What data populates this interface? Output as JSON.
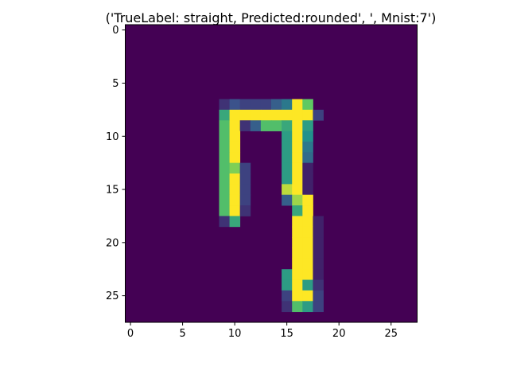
{
  "chart_data": {
    "type": "heatmap",
    "title": "('TrueLabel: straight, Predicted:rounded', ', Mnist:7')",
    "xlabel": "",
    "ylabel": "",
    "rows": 28,
    "cols": 28,
    "xlim": [
      -0.5,
      27.5
    ],
    "ylim": [
      27.5,
      -0.5
    ],
    "xticks": [
      0,
      5,
      10,
      15,
      20,
      25
    ],
    "yticks": [
      0,
      5,
      10,
      15,
      20,
      25
    ],
    "colormap": "viridis",
    "vmin": 0,
    "vmax": 1,
    "grid": false,
    "colors": {
      "background": "#ffffff",
      "axis": "#000000",
      "low": "#440154",
      "high": "#fde725"
    },
    "cells": [
      {
        "r": 7,
        "c": 9,
        "v": 0.15
      },
      {
        "r": 7,
        "c": 10,
        "v": 0.25
      },
      {
        "r": 7,
        "c": 11,
        "v": 0.2
      },
      {
        "r": 7,
        "c": 12,
        "v": 0.2
      },
      {
        "r": 7,
        "c": 13,
        "v": 0.2
      },
      {
        "r": 7,
        "c": 14,
        "v": 0.3
      },
      {
        "r": 7,
        "c": 15,
        "v": 0.4
      },
      {
        "r": 7,
        "c": 16,
        "v": 1.0
      },
      {
        "r": 7,
        "c": 17,
        "v": 0.75
      },
      {
        "r": 8,
        "c": 9,
        "v": 0.6
      },
      {
        "r": 8,
        "c": 10,
        "v": 1.0
      },
      {
        "r": 8,
        "c": 11,
        "v": 1.0
      },
      {
        "r": 8,
        "c": 12,
        "v": 1.0
      },
      {
        "r": 8,
        "c": 13,
        "v": 1.0
      },
      {
        "r": 8,
        "c": 14,
        "v": 1.0
      },
      {
        "r": 8,
        "c": 15,
        "v": 1.0
      },
      {
        "r": 8,
        "c": 16,
        "v": 1.0
      },
      {
        "r": 8,
        "c": 17,
        "v": 1.0
      },
      {
        "r": 8,
        "c": 18,
        "v": 0.2
      },
      {
        "r": 9,
        "c": 9,
        "v": 0.7
      },
      {
        "r": 9,
        "c": 10,
        "v": 1.0
      },
      {
        "r": 9,
        "c": 11,
        "v": 0.15
      },
      {
        "r": 9,
        "c": 12,
        "v": 0.3
      },
      {
        "r": 9,
        "c": 13,
        "v": 0.7
      },
      {
        "r": 9,
        "c": 14,
        "v": 0.7
      },
      {
        "r": 9,
        "c": 15,
        "v": 0.6
      },
      {
        "r": 9,
        "c": 16,
        "v": 1.0
      },
      {
        "r": 9,
        "c": 17,
        "v": 0.55
      },
      {
        "r": 10,
        "c": 9,
        "v": 0.7
      },
      {
        "r": 10,
        "c": 10,
        "v": 1.0
      },
      {
        "r": 10,
        "c": 15,
        "v": 0.55
      },
      {
        "r": 10,
        "c": 16,
        "v": 1.0
      },
      {
        "r": 10,
        "c": 17,
        "v": 0.5
      },
      {
        "r": 11,
        "c": 9,
        "v": 0.7
      },
      {
        "r": 11,
        "c": 10,
        "v": 1.0
      },
      {
        "r": 11,
        "c": 15,
        "v": 0.55
      },
      {
        "r": 11,
        "c": 16,
        "v": 1.0
      },
      {
        "r": 11,
        "c": 17,
        "v": 0.4
      },
      {
        "r": 12,
        "c": 9,
        "v": 0.7
      },
      {
        "r": 12,
        "c": 10,
        "v": 1.0
      },
      {
        "r": 12,
        "c": 15,
        "v": 0.55
      },
      {
        "r": 12,
        "c": 16,
        "v": 1.0
      },
      {
        "r": 12,
        "c": 17,
        "v": 0.35
      },
      {
        "r": 13,
        "c": 9,
        "v": 0.7
      },
      {
        "r": 13,
        "c": 10,
        "v": 0.8
      },
      {
        "r": 13,
        "c": 11,
        "v": 0.2
      },
      {
        "r": 13,
        "c": 15,
        "v": 0.55
      },
      {
        "r": 13,
        "c": 16,
        "v": 1.0
      },
      {
        "r": 13,
        "c": 17,
        "v": 0.1
      },
      {
        "r": 14,
        "c": 9,
        "v": 0.7
      },
      {
        "r": 14,
        "c": 10,
        "v": 1.0
      },
      {
        "r": 14,
        "c": 11,
        "v": 0.2
      },
      {
        "r": 14,
        "c": 15,
        "v": 0.55
      },
      {
        "r": 14,
        "c": 16,
        "v": 1.0
      },
      {
        "r": 14,
        "c": 17,
        "v": 0.1
      },
      {
        "r": 15,
        "c": 9,
        "v": 0.7
      },
      {
        "r": 15,
        "c": 10,
        "v": 1.0
      },
      {
        "r": 15,
        "c": 11,
        "v": 0.2
      },
      {
        "r": 15,
        "c": 15,
        "v": 0.9
      },
      {
        "r": 15,
        "c": 16,
        "v": 1.0
      },
      {
        "r": 15,
        "c": 17,
        "v": 0.1
      },
      {
        "r": 16,
        "c": 9,
        "v": 0.7
      },
      {
        "r": 16,
        "c": 10,
        "v": 1.0
      },
      {
        "r": 16,
        "c": 11,
        "v": 0.2
      },
      {
        "r": 16,
        "c": 15,
        "v": 0.3
      },
      {
        "r": 16,
        "c": 16,
        "v": 0.85
      },
      {
        "r": 16,
        "c": 17,
        "v": 1.0
      },
      {
        "r": 17,
        "c": 9,
        "v": 0.7
      },
      {
        "r": 17,
        "c": 10,
        "v": 1.0
      },
      {
        "r": 17,
        "c": 11,
        "v": 0.15
      },
      {
        "r": 17,
        "c": 16,
        "v": 0.6
      },
      {
        "r": 17,
        "c": 17,
        "v": 1.0
      },
      {
        "r": 18,
        "c": 9,
        "v": 0.15
      },
      {
        "r": 18,
        "c": 10,
        "v": 0.6
      },
      {
        "r": 18,
        "c": 16,
        "v": 1.0
      },
      {
        "r": 18,
        "c": 17,
        "v": 1.0
      },
      {
        "r": 18,
        "c": 18,
        "v": 0.1
      },
      {
        "r": 19,
        "c": 16,
        "v": 1.0
      },
      {
        "r": 19,
        "c": 17,
        "v": 1.0
      },
      {
        "r": 19,
        "c": 18,
        "v": 0.1
      },
      {
        "r": 20,
        "c": 16,
        "v": 1.0
      },
      {
        "r": 20,
        "c": 17,
        "v": 1.0
      },
      {
        "r": 20,
        "c": 18,
        "v": 0.1
      },
      {
        "r": 21,
        "c": 16,
        "v": 1.0
      },
      {
        "r": 21,
        "c": 17,
        "v": 1.0
      },
      {
        "r": 21,
        "c": 18,
        "v": 0.1
      },
      {
        "r": 22,
        "c": 16,
        "v": 1.0
      },
      {
        "r": 22,
        "c": 17,
        "v": 1.0
      },
      {
        "r": 22,
        "c": 18,
        "v": 0.1
      },
      {
        "r": 23,
        "c": 15,
        "v": 0.55
      },
      {
        "r": 23,
        "c": 16,
        "v": 1.0
      },
      {
        "r": 23,
        "c": 17,
        "v": 1.0
      },
      {
        "r": 23,
        "c": 18,
        "v": 0.1
      },
      {
        "r": 24,
        "c": 15,
        "v": 0.55
      },
      {
        "r": 24,
        "c": 16,
        "v": 1.0
      },
      {
        "r": 24,
        "c": 17,
        "v": 0.55
      },
      {
        "r": 24,
        "c": 18,
        "v": 0.15
      },
      {
        "r": 25,
        "c": 15,
        "v": 0.2
      },
      {
        "r": 25,
        "c": 16,
        "v": 1.0
      },
      {
        "r": 25,
        "c": 17,
        "v": 1.0
      },
      {
        "r": 25,
        "c": 18,
        "v": 0.2
      },
      {
        "r": 26,
        "c": 15,
        "v": 0.15
      },
      {
        "r": 26,
        "c": 16,
        "v": 0.7
      },
      {
        "r": 26,
        "c": 17,
        "v": 0.55
      },
      {
        "r": 26,
        "c": 18,
        "v": 0.2
      }
    ]
  }
}
